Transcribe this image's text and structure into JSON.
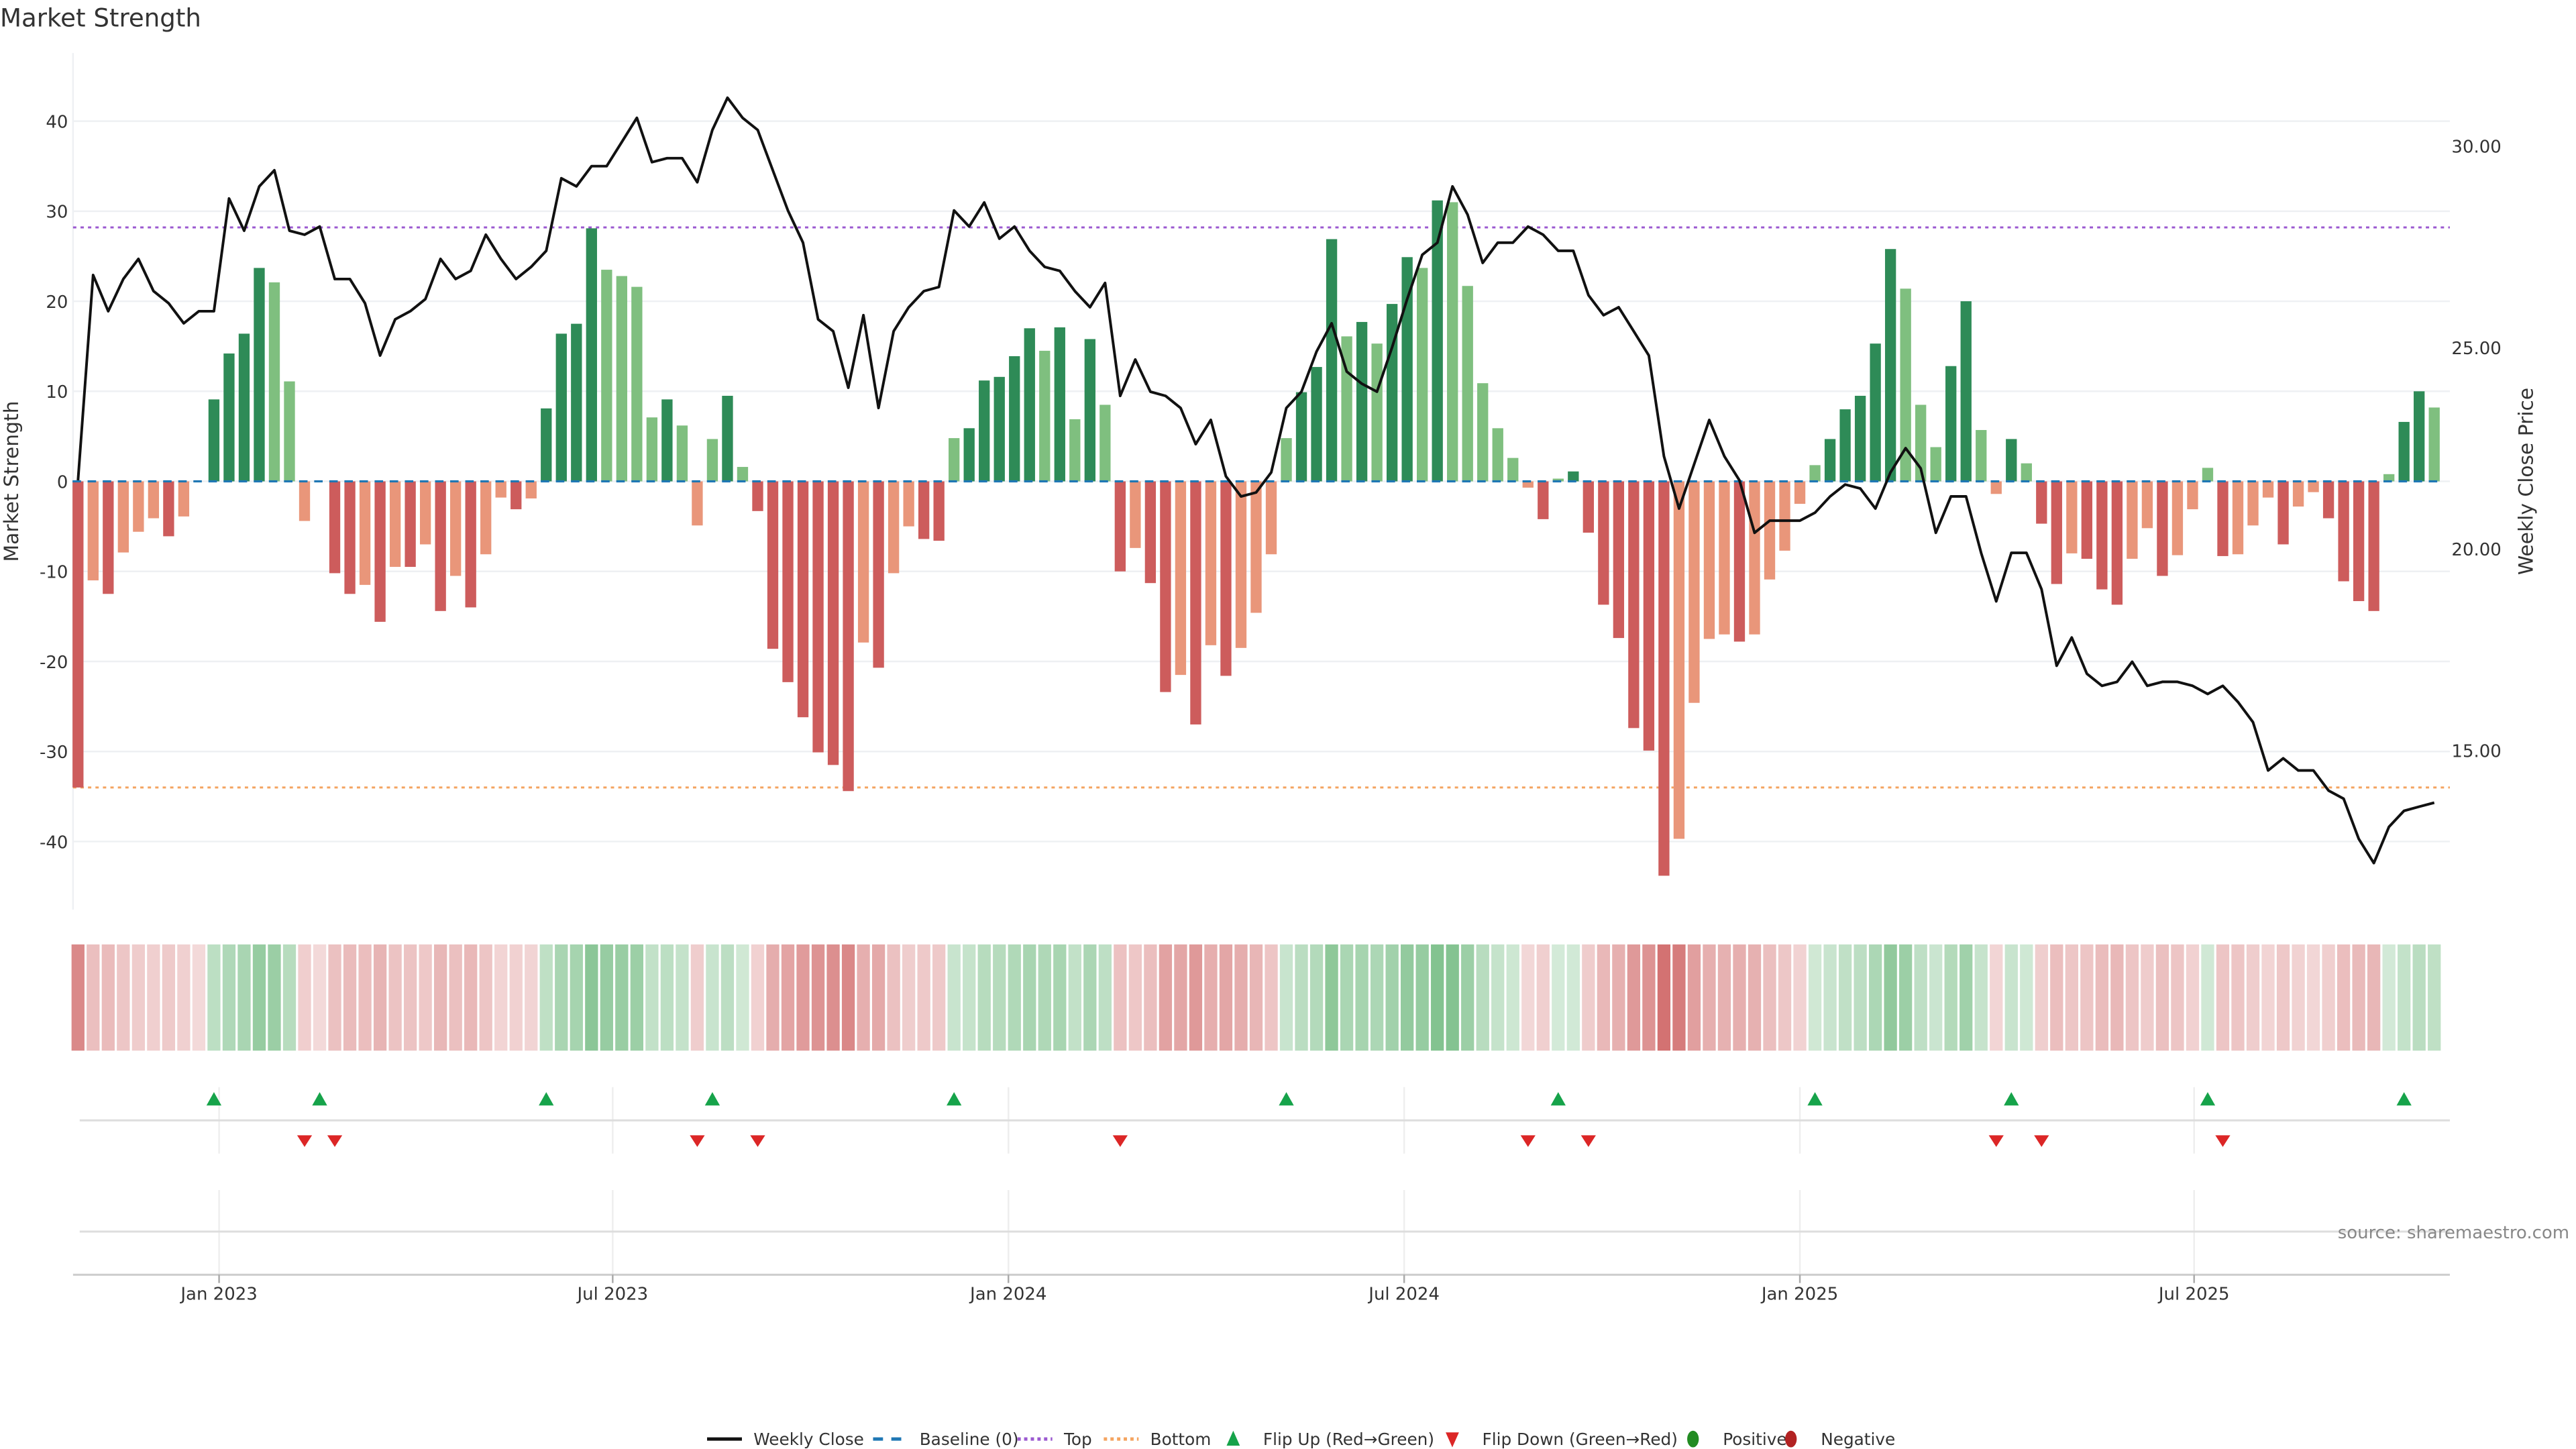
{
  "chart_data": {
    "type": "bar",
    "title": "Market Strength",
    "ylabel": "Market Strength",
    "y2label": "Weekly Close Price",
    "source": "source: sharemaestro.com",
    "ylim": [
      -48,
      47
    ],
    "y2lim": [
      11.0,
      31.8
    ],
    "yticks": [
      40,
      30,
      20,
      10,
      0,
      -10,
      -20,
      -30,
      -40
    ],
    "y2ticks": [
      "30.00",
      "25.00",
      "20.00",
      "15.00"
    ],
    "y2tick_values": [
      30,
      25,
      20,
      15
    ],
    "xticks": [
      {
        "label": "Jan 2023",
        "week_index": 9.34
      },
      {
        "label": "Jul 2023",
        "week_index": 35.4
      },
      {
        "label": "Jan 2024",
        "week_index": 61.6
      },
      {
        "label": "Jul 2024",
        "week_index": 87.8
      },
      {
        "label": "Jan 2025",
        "week_index": 114.0
      },
      {
        "label": "Jul 2025",
        "week_index": 140.1
      }
    ],
    "top_level": 28.2,
    "bottom_level": -34.0,
    "baseline": 0,
    "colors": {
      "green_strong": "#2e8b57",
      "green_weak": "#7fbf7f",
      "red_strong": "#cd5c5c",
      "red_weak": "#e9967a",
      "top": "#9b59d0",
      "bottom": "#f4a460",
      "baseline": "#1f77b4",
      "flip_up": "#16a34a",
      "flip_down": "#dc2626",
      "positive": "#228b22",
      "negative": "#b22222"
    },
    "strength": [
      -34,
      -11,
      -12.5,
      -7.9,
      -5.6,
      -4.1,
      -6.1,
      -3.9,
      0,
      9.1,
      14.2,
      16.4,
      23.7,
      22.1,
      11.1,
      -4.4,
      0,
      -10.2,
      -12.5,
      -11.5,
      -15.6,
      -9.5,
      -9.5,
      -7,
      -14.4,
      -10.5,
      -14,
      -8.1,
      -1.8,
      -3.1,
      -1.9,
      8.1,
      16.4,
      17.5,
      28.1,
      23.5,
      22.8,
      21.6,
      7.1,
      9.1,
      6.2,
      -4.9,
      4.7,
      9.5,
      1.6,
      -3.3,
      -18.6,
      -22.3,
      -26.2,
      -30.1,
      -31.5,
      -34.4,
      -17.9,
      -20.7,
      -10.2,
      -5,
      -6.4,
      -6.6,
      4.8,
      5.9,
      11.2,
      11.6,
      13.9,
      17,
      14.5,
      17.1,
      6.9,
      15.8,
      8.5,
      -10,
      -7.4,
      -11.3,
      -23.4,
      -21.5,
      -27,
      -18.2,
      -21.6,
      -18.5,
      -14.6,
      -8.1,
      4.8,
      9.9,
      12.7,
      26.9,
      16.1,
      17.7,
      15.3,
      19.7,
      24.9,
      23.7,
      31.2,
      31.0,
      21.7,
      10.9,
      5.9,
      2.6,
      -0.7,
      -4.2,
      0.3,
      1.1,
      -5.7,
      -13.7,
      -17.4,
      -27.4,
      -29.9,
      -43.8,
      -39.7,
      -24.6,
      -17.5,
      -17,
      -17.8,
      -17,
      -10.9,
      -7.7,
      -2.5,
      1.8,
      4.7,
      8,
      9.5,
      15.3,
      25.8,
      21.4,
      8.5,
      3.8,
      12.8,
      20,
      5.7,
      -1.4,
      4.7,
      2,
      -4.7,
      -11.4,
      -8,
      -8.6,
      -12,
      -13.7,
      -8.6,
      -5.2,
      -10.5,
      -8.2,
      -3.1,
      1.5,
      -8.3,
      -8.1,
      -4.9,
      -1.8,
      -7,
      -2.8,
      -1.2,
      -4.1,
      -11.1,
      -13.3,
      -14.4,
      0.8,
      6.6,
      10,
      8.2
    ],
    "weekly_close": [
      21.7,
      26.8,
      25.9,
      26.7,
      27.2,
      26.4,
      26.1,
      25.6,
      25.9,
      25.9,
      28.7,
      27.9,
      29,
      29.4,
      27.9,
      27.8,
      28,
      26.7,
      26.7,
      26.1,
      24.8,
      25.7,
      25.9,
      26.2,
      27.2,
      26.7,
      26.9,
      27.8,
      27.2,
      26.7,
      27,
      27.4,
      29.2,
      29,
      29.5,
      29.5,
      30.1,
      30.7,
      29.6,
      29.7,
      29.7,
      29.1,
      30.4,
      31.2,
      30.7,
      30.4,
      29.4,
      28.4,
      27.6,
      25.7,
      25.4,
      24,
      25.8,
      23.5,
      25.4,
      26,
      26.4,
      26.5,
      28.4,
      28,
      28.6,
      27.7,
      28,
      27.4,
      27,
      26.9,
      26.4,
      26,
      26.6,
      23.8,
      24.7,
      23.9,
      23.8,
      23.5,
      22.6,
      23.2,
      21.8,
      21.3,
      21.4,
      21.9,
      23.5,
      23.9,
      24.9,
      25.6,
      24.4,
      24.1,
      23.9,
      25,
      26.2,
      27.3,
      27.6,
      29,
      28.3,
      27.1,
      27.6,
      27.6,
      28,
      27.8,
      27.4,
      27.4,
      26.3,
      25.8,
      26,
      25.4,
      24.8,
      22.3,
      21,
      22.1,
      23.2,
      22.3,
      21.7,
      20.4,
      20.7,
      20.7,
      20.7,
      20.9,
      21.3,
      21.6,
      21.5,
      21,
      21.9,
      22.5,
      22,
      20.4,
      21.3,
      21.3,
      19.9,
      18.7,
      19.9,
      19.9,
      19,
      17.1,
      17.8,
      16.9,
      16.6,
      16.7,
      17.2,
      16.6,
      16.7,
      16.7,
      16.6,
      16.4,
      16.6,
      16.2,
      15.7,
      14.5,
      14.8,
      14.5,
      14.5,
      14,
      13.8,
      12.8,
      12.2,
      13.1,
      13.5,
      13.6,
      13.7
    ],
    "flip_up_weeks": [
      9,
      16,
      31,
      42,
      58,
      80,
      98,
      115,
      128,
      141,
      154
    ],
    "flip_down_weeks": [
      15,
      17,
      41,
      45,
      69,
      96,
      100,
      127,
      130,
      142
    ],
    "legend": [
      {
        "label": "Weekly Close",
        "kind": "line"
      },
      {
        "label": "Baseline (0)",
        "kind": "dash"
      },
      {
        "label": "Top",
        "kind": "dot-top"
      },
      {
        "label": "Bottom",
        "kind": "dot-bottom"
      },
      {
        "label": "Flip Up (Red→Green)",
        "kind": "up"
      },
      {
        "label": "Flip Down (Green→Red)",
        "kind": "down"
      },
      {
        "label": "Positive",
        "kind": "pos"
      },
      {
        "label": "Negative",
        "kind": "neg"
      }
    ],
    "legend_position": "bottom-center"
  }
}
